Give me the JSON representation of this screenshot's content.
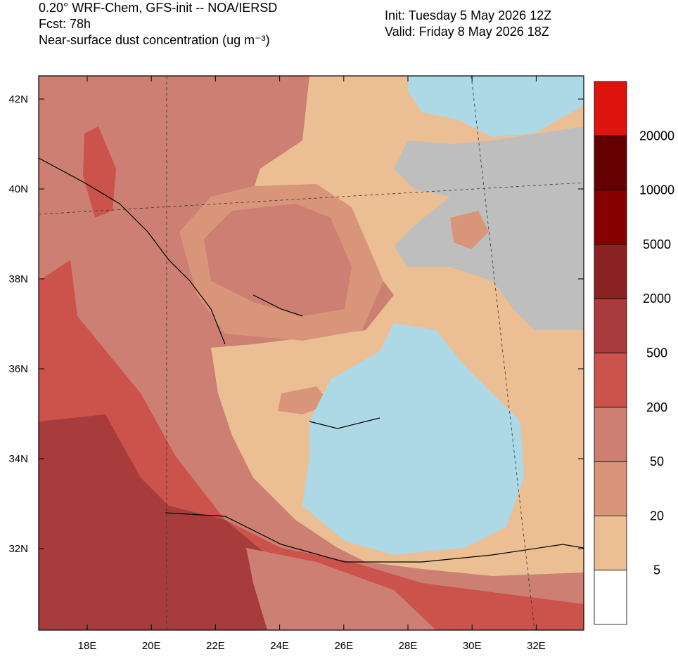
{
  "header": {
    "title_lines": [
      "0.20° WRF-Chem, GFS-init -- NOA/IERSD",
      "Fcst: 78h",
      "Near-surface dust concentration (ug m⁻³)"
    ],
    "init": "Init: Tuesday 5 May 2026  12Z",
    "valid": "Valid: Friday 8 May 2026  18Z"
  },
  "map": {
    "lat_labels": [
      "42N",
      "40N",
      "38N",
      "36N",
      "34N",
      "32N"
    ],
    "lon_labels": [
      "18E",
      "20E",
      "22E",
      "24E",
      "26E",
      "28E",
      "30E",
      "32E"
    ]
  },
  "colorbar": {
    "levels": [
      20000,
      10000,
      5000,
      2000,
      500,
      200,
      50,
      20,
      5
    ],
    "colors": [
      "#e0140f",
      "#640000",
      "#880000",
      "#8b2222",
      "#a83c3c",
      "#cc524c",
      "#cc7f72",
      "#d9957a",
      "#ebbf93",
      "#ffffff"
    ]
  }
}
